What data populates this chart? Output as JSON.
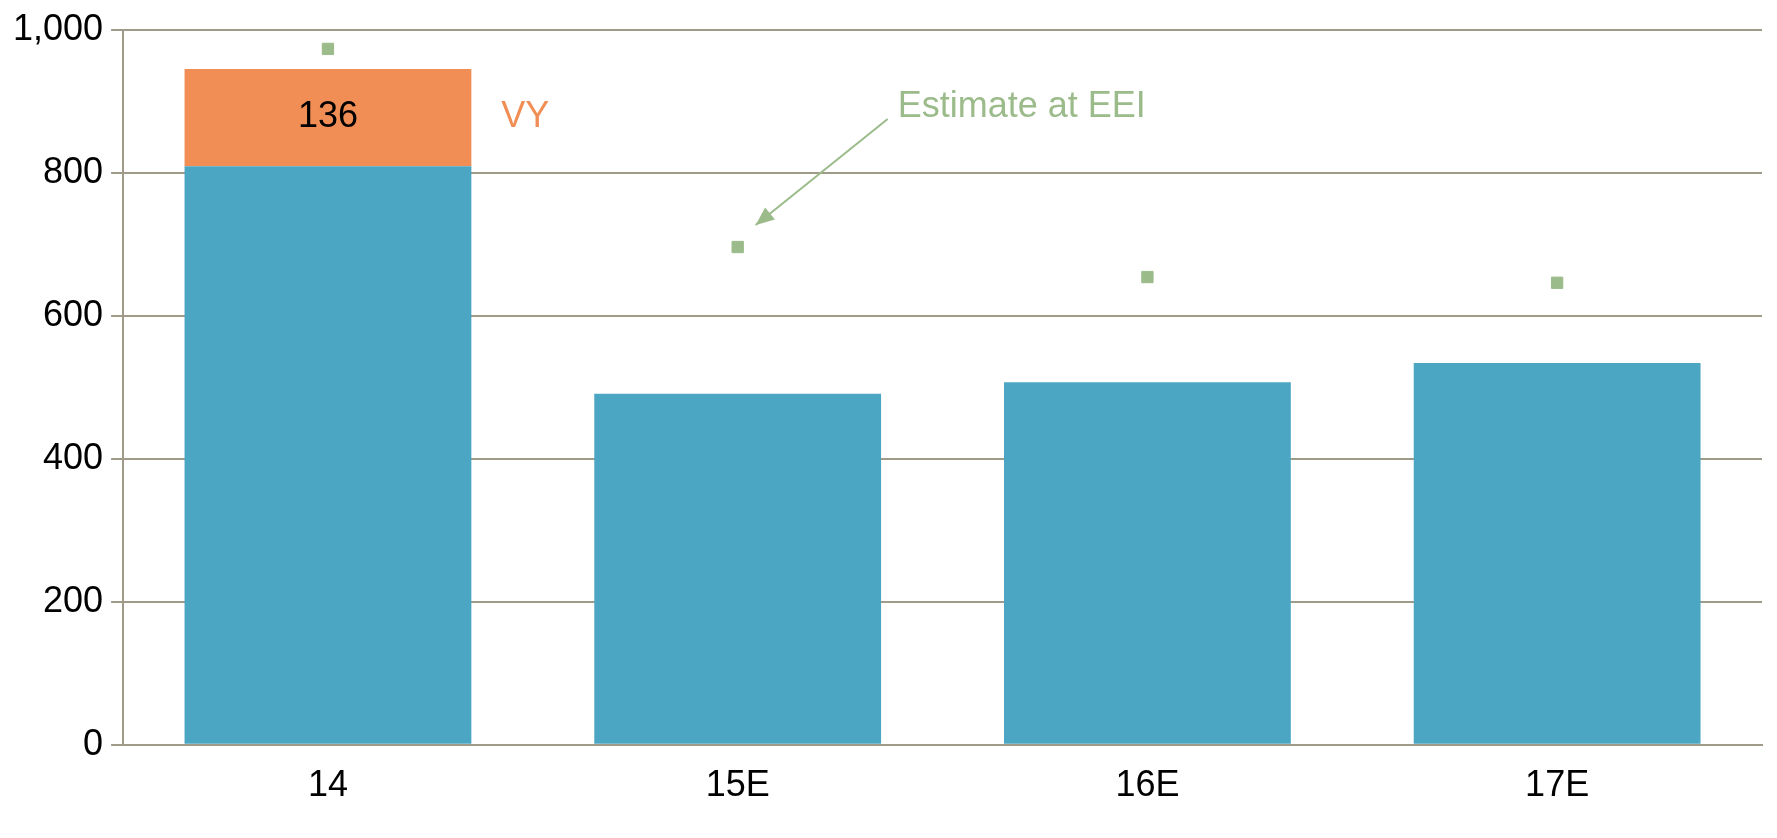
{
  "chart_data": {
    "type": "bar",
    "stacked": true,
    "categories": [
      "14",
      "15E",
      "16E",
      "17E"
    ],
    "series": [
      {
        "color": "#4ba6c3",
        "values": [
          809,
          491,
          507,
          534
        ]
      },
      {
        "name": "VY",
        "color": "#f18e55",
        "values": [
          136,
          null,
          null,
          null
        ],
        "value_labels": [
          "136",
          null,
          null,
          null
        ]
      },
      {
        "type": "scatter",
        "color": "#9bbb8a",
        "x": [
          "14",
          "15E",
          "16E",
          "17E"
        ],
        "values": [
          973,
          696,
          654,
          646
        ]
      }
    ],
    "ylim": [
      0,
      1000
    ],
    "yticks": [
      0,
      200,
      400,
      600,
      800,
      {
        "value": 1000,
        "label": "1,000"
      }
    ],
    "grid": "y",
    "legend": false,
    "marker": "square",
    "annotations": [
      "Estimate at EEI"
    ]
  }
}
